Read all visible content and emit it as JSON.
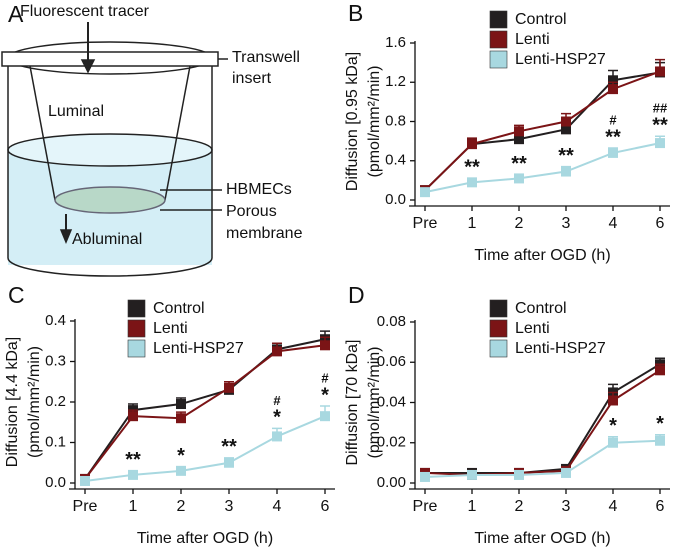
{
  "diagram": {
    "panel_label": "A",
    "tracer": "Fluorescent tracer",
    "insert": [
      "Transwell",
      "insert"
    ],
    "luminal": "Luminal",
    "cells": "HBMECs",
    "membrane": [
      "Porous",
      "membrane"
    ],
    "abluminal": "Abluminal"
  },
  "chart_data": [
    {
      "type": "line",
      "panel_label": "B",
      "y_label": [
        "Diffusion [0.95 kDa]",
        "(pmol/mm²/min)"
      ],
      "x_label": "Time after OGD (h)",
      "categories": [
        "Pre",
        "1",
        "2",
        "3",
        "4",
        "6"
      ],
      "ylim": [
        0,
        1.6
      ],
      "yticks": [
        {
          "value": 0,
          "label": "0.0"
        },
        0.4,
        0.8,
        1.2,
        1.6
      ],
      "series": [
        {
          "name": "Control",
          "color": "#231f20",
          "values": [
            0.1,
            0.57,
            0.62,
            0.72,
            1.22,
            1.3
          ],
          "errors": [
            0.03,
            0.05,
            0.04,
            0.05,
            0.1,
            0.1
          ]
        },
        {
          "name": "Lenti",
          "color": "#7b1416",
          "values": [
            0.1,
            0.57,
            0.7,
            0.8,
            1.13,
            1.31
          ],
          "errors": [
            0.03,
            0.06,
            0.06,
            0.08,
            0.07,
            0.12
          ]
        },
        {
          "name": "Lenti-HSP27",
          "color": "#a8d8e0",
          "values": [
            0.08,
            0.18,
            0.22,
            0.29,
            0.48,
            0.58
          ],
          "errors": [
            0.03,
            0.04,
            0.04,
            0.05,
            0.05,
            0.07
          ]
        }
      ],
      "annotations": [
        {
          "category": "1",
          "text": "**"
        },
        {
          "category": "2",
          "text": "**"
        },
        {
          "category": "3",
          "text": "**"
        },
        {
          "category": "4",
          "text": "**"
        },
        {
          "category": "4",
          "text": "#"
        },
        {
          "category": "6",
          "text": "**"
        },
        {
          "category": "6",
          "text": "##"
        }
      ]
    },
    {
      "type": "line",
      "panel_label": "C",
      "y_label": [
        "Diffusion [4.4 kDa]",
        "(pmol/mm²/min)"
      ],
      "x_label": "Time after OGD (h)",
      "categories": [
        "Pre",
        "1",
        "2",
        "3",
        "4",
        "6"
      ],
      "ylim": [
        0,
        0.4
      ],
      "yticks": [
        {
          "value": 0,
          "label": "0.0"
        },
        0.1,
        0.2,
        0.3,
        0.4
      ],
      "series": [
        {
          "name": "Control",
          "color": "#231f20",
          "values": [
            0.01,
            0.18,
            0.195,
            0.23,
            0.33,
            0.355
          ],
          "errors": [
            0.01,
            0.015,
            0.015,
            0.015,
            0.015,
            0.02
          ]
        },
        {
          "name": "Lenti",
          "color": "#7b1416",
          "values": [
            0.01,
            0.165,
            0.16,
            0.235,
            0.325,
            0.34
          ],
          "errors": [
            0.01,
            0.015,
            0.015,
            0.015,
            0.02,
            0.02
          ]
        },
        {
          "name": "Lenti-HSP27",
          "color": "#a8d8e0",
          "values": [
            0.005,
            0.02,
            0.03,
            0.05,
            0.115,
            0.165
          ],
          "errors": [
            0.008,
            0.01,
            0.01,
            0.012,
            0.02,
            0.025
          ]
        }
      ],
      "annotations": [
        {
          "category": "1",
          "text": "**"
        },
        {
          "category": "2",
          "text": "*"
        },
        {
          "category": "3",
          "text": "**"
        },
        {
          "category": "4",
          "text": "*"
        },
        {
          "category": "4",
          "text": "#"
        },
        {
          "category": "6",
          "text": "*"
        },
        {
          "category": "6",
          "text": "#"
        }
      ]
    },
    {
      "type": "line",
      "panel_label": "D",
      "y_label": [
        "Diffusion [70 kDa]",
        "(pmol/mm²/min)"
      ],
      "x_label": "Time after OGD (h)",
      "categories": [
        "Pre",
        "1",
        "2",
        "3",
        "4",
        "6"
      ],
      "ylim": [
        0,
        0.08
      ],
      "yticks": [
        {
          "value": 0,
          "label": "0.00"
        },
        {
          "value": 0.02,
          "label": "0.02"
        },
        {
          "value": 0.04,
          "label": "0.04"
        },
        {
          "value": 0.06,
          "label": "0.06"
        },
        {
          "value": 0.08,
          "label": "0.08"
        }
      ],
      "series": [
        {
          "name": "Control",
          "color": "#231f20",
          "values": [
            0.005,
            0.005,
            0.005,
            0.007,
            0.045,
            0.059
          ],
          "errors": [
            0.001,
            0.001,
            0.001,
            0.001,
            0.004,
            0.003
          ]
        },
        {
          "name": "Lenti",
          "color": "#7b1416",
          "values": [
            0.005,
            0.004,
            0.005,
            0.006,
            0.041,
            0.056
          ],
          "errors": [
            0.001,
            0.001,
            0.001,
            0.001,
            0.004,
            0.003
          ]
        },
        {
          "name": "Lenti-HSP27",
          "color": "#a8d8e0",
          "values": [
            0.003,
            0.004,
            0.004,
            0.005,
            0.02,
            0.021
          ],
          "errors": [
            0.001,
            0.001,
            0.001,
            0.001,
            0.003,
            0.003
          ]
        }
      ],
      "annotations": [
        {
          "category": "4",
          "text": "*"
        },
        {
          "category": "6",
          "text": "*"
        }
      ]
    }
  ]
}
